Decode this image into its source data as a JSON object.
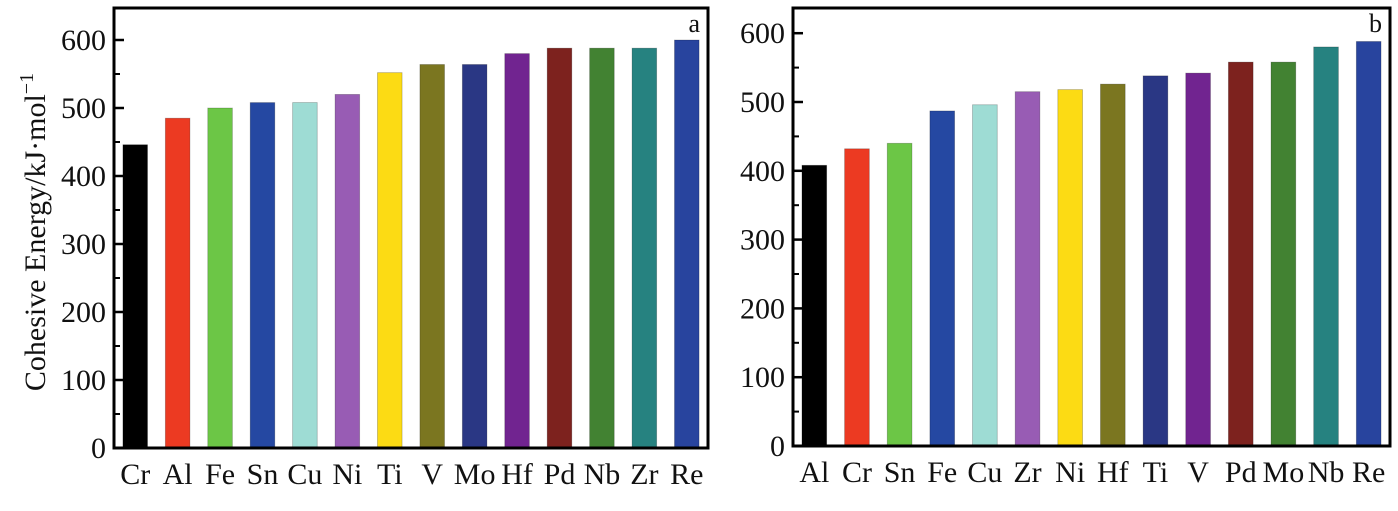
{
  "chart_data": [
    {
      "type": "bar",
      "panel_label": "a",
      "ylabel": "Cohesive Energy/kJ·mol",
      "ylabel_superscript": "−1",
      "ylim": [
        0,
        640
      ],
      "yticks": [
        0,
        100,
        200,
        300,
        400,
        500,
        600
      ],
      "categories": [
        "Cr",
        "Al",
        "Fe",
        "Sn",
        "Cu",
        "Ni",
        "Ti",
        "V",
        "Mo",
        "Hf",
        "Pd",
        "Nb",
        "Zr",
        "Re"
      ],
      "values": [
        446,
        485,
        500,
        508,
        508,
        520,
        552,
        564,
        564,
        580,
        588,
        588,
        588,
        600
      ],
      "colors": [
        "#000000",
        "#ec3a22",
        "#6cc646",
        "#2548a2",
        "#9edcd4",
        "#985cb4",
        "#fcdb14",
        "#7b7620",
        "#2a3784",
        "#712490",
        "#7d221e",
        "#428232",
        "#268280",
        "#28449e"
      ]
    },
    {
      "type": "bar",
      "panel_label": "b",
      "ylabel": "",
      "ylim": [
        0,
        640
      ],
      "yticks": [
        0,
        100,
        200,
        300,
        400,
        500,
        600
      ],
      "categories": [
        "Al",
        "Cr",
        "Sn",
        "Fe",
        "Cu",
        "Zr",
        "Ni",
        "Hf",
        "Ti",
        "V",
        "Pd",
        "Mo",
        "Nb",
        "Re"
      ],
      "values": [
        408,
        432,
        440,
        487,
        496,
        515,
        518,
        526,
        538,
        542,
        558,
        558,
        580,
        588
      ],
      "colors": [
        "#000000",
        "#ec3a22",
        "#6cc646",
        "#2548a2",
        "#9edcd4",
        "#985cb4",
        "#fcdb14",
        "#7b7620",
        "#2a3784",
        "#712490",
        "#7d221e",
        "#428232",
        "#268280",
        "#28449e"
      ]
    }
  ]
}
